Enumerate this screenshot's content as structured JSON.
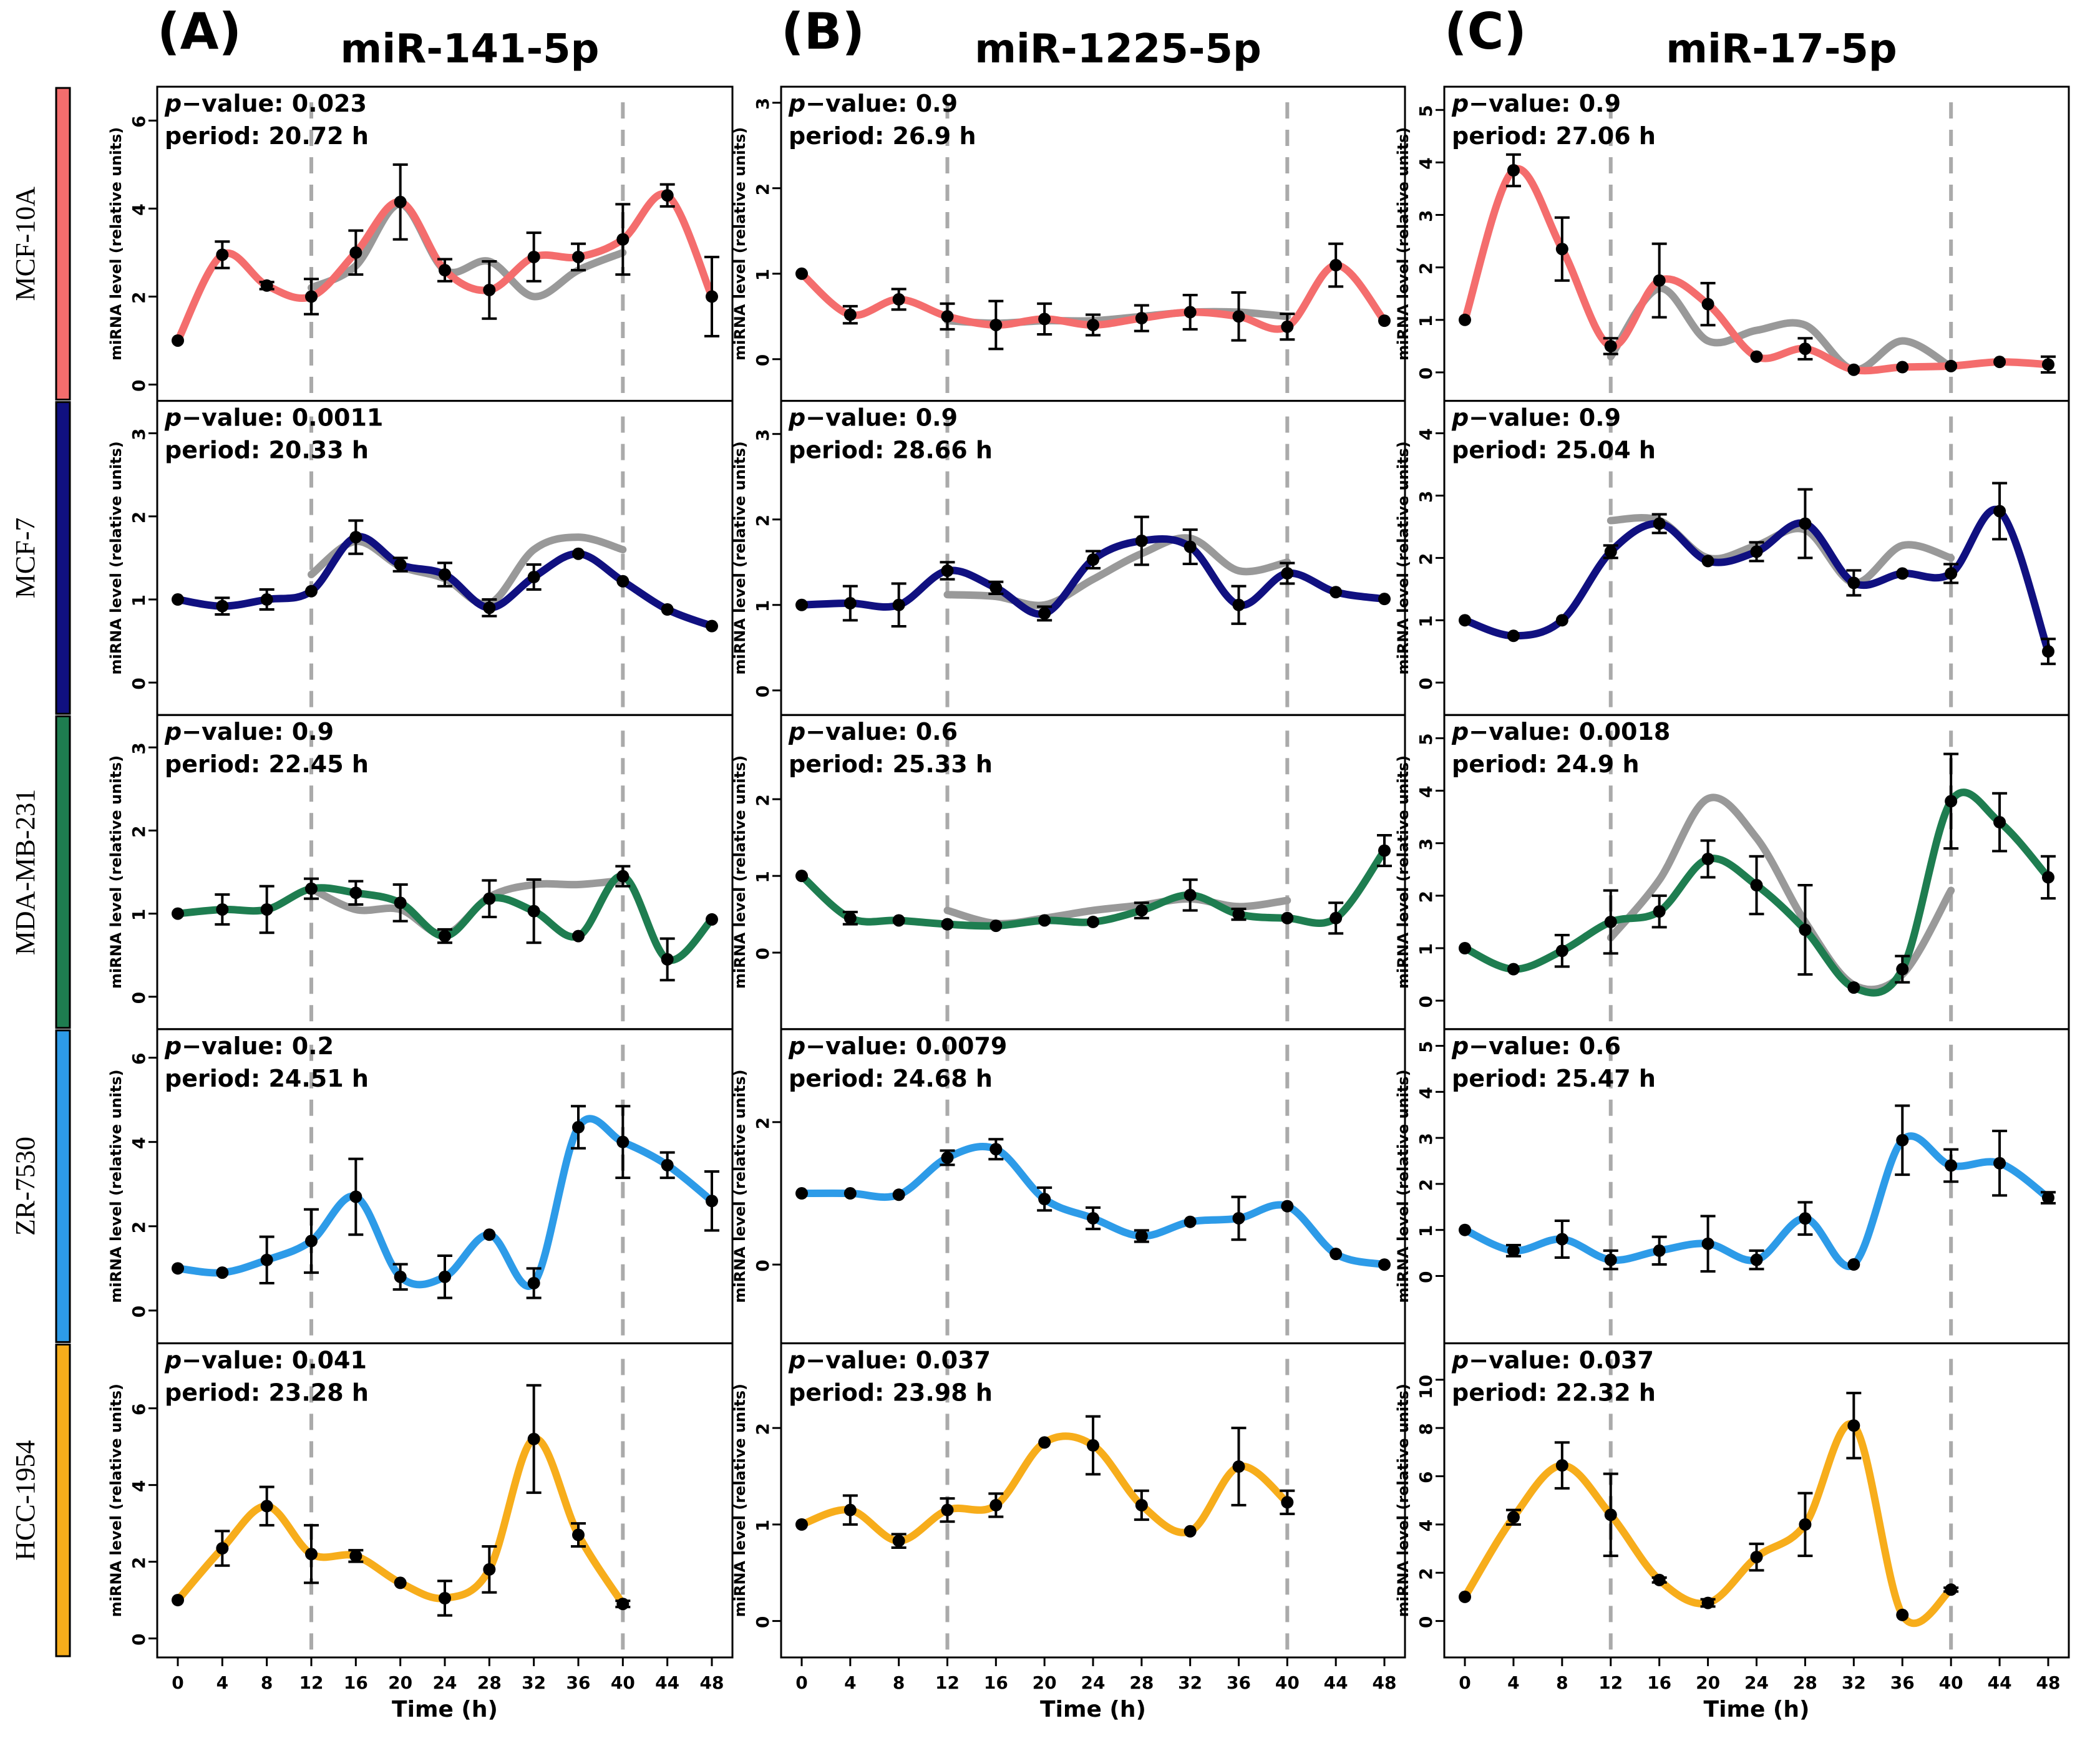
{
  "colors": {
    "fitted_line": "#999999",
    "cycle_marker": "#aaaaaa",
    "points": "#000000"
  },
  "chart_data": {
    "type": "line",
    "x_label": "Time (h)",
    "y_label": "miRNA level (relative units)",
    "x": [
      0,
      4,
      8,
      12,
      16,
      20,
      24,
      28,
      32,
      36,
      40,
      44,
      48
    ],
    "x_ticks": [
      "0",
      "4",
      "8",
      "12",
      "16",
      "20",
      "24",
      "28",
      "32",
      "36",
      "40",
      "44",
      "48"
    ],
    "xlim": [
      -1.5,
      49.5
    ],
    "reference_lines_x": [
      12,
      40
    ],
    "pvalue_prefix": "p",
    "pvalue_suffix": "−value: ",
    "period_prefix": "period: ",
    "period_suffix": " h",
    "columns": [
      {
        "letter": "(A)",
        "title": "miR-141-5p"
      },
      {
        "letter": "(B)",
        "title": "miR-1225-5p"
      },
      {
        "letter": "(C)",
        "title": "miR-17-5p"
      }
    ],
    "rows": [
      {
        "label": "MCF-10A",
        "color": "#f46d6d"
      },
      {
        "label": "MCF-7",
        "color": "#101080"
      },
      {
        "label": "MDA-MB-231",
        "color": "#1e7d50"
      },
      {
        "label": "ZR-7530",
        "color": "#2d9be8"
      },
      {
        "label": "HCC-1954",
        "color": "#f7ad1b"
      }
    ],
    "panels": [
      {
        "row": 0,
        "col": 0,
        "pvalue": "0.023",
        "period": "20.72",
        "ylim": [
          -0.2,
          6.6
        ],
        "yticks": [
          "0",
          "2",
          "4",
          "6"
        ],
        "values": [
          1.0,
          2.95,
          2.25,
          2.0,
          3.0,
          4.15,
          2.6,
          2.15,
          2.9,
          2.9,
          3.3,
          4.3,
          2.0
        ],
        "errors": [
          0.05,
          0.3,
          0.08,
          0.4,
          0.5,
          0.85,
          0.25,
          0.65,
          0.55,
          0.3,
          0.8,
          0.25,
          0.9
        ],
        "fit_x": [
          12,
          16,
          20,
          24,
          28,
          32,
          36,
          40
        ],
        "fit_y": [
          2.2,
          2.7,
          4.1,
          2.6,
          2.8,
          2.0,
          2.6,
          3.0
        ]
      },
      {
        "row": 0,
        "col": 1,
        "pvalue": "0.9",
        "period": "26.9",
        "ylim": [
          -0.4,
          3.1
        ],
        "yticks": [
          "0",
          "1",
          "2",
          "3"
        ],
        "values": [
          1.0,
          0.52,
          0.7,
          0.5,
          0.4,
          0.47,
          0.4,
          0.48,
          0.55,
          0.5,
          0.38,
          1.1,
          0.45
        ],
        "errors": [
          0.03,
          0.1,
          0.12,
          0.15,
          0.28,
          0.18,
          0.12,
          0.15,
          0.2,
          0.28,
          0.15,
          0.25,
          0.05
        ],
        "fit_x": [
          12,
          16,
          20,
          24,
          28,
          32,
          36,
          40
        ],
        "fit_y": [
          0.45,
          0.42,
          0.45,
          0.45,
          0.5,
          0.55,
          0.55,
          0.5
        ]
      },
      {
        "row": 0,
        "col": 2,
        "pvalue": "0.9",
        "period": "27.06",
        "ylim": [
          -0.4,
          5.3
        ],
        "yticks": [
          "0",
          "1",
          "2",
          "3",
          "4",
          "5"
        ],
        "values": [
          1.0,
          3.85,
          2.35,
          0.5,
          1.75,
          1.3,
          0.3,
          0.45,
          0.05,
          0.1,
          0.12,
          0.2,
          0.15
        ],
        "errors": [
          0.05,
          0.3,
          0.6,
          0.15,
          0.7,
          0.4,
          0.05,
          0.2,
          0.05,
          0.05,
          0.05,
          0.05,
          0.15
        ],
        "fit_x": [
          12,
          16,
          20,
          24,
          28,
          32,
          36,
          40
        ],
        "fit_y": [
          0.3,
          1.6,
          0.6,
          0.8,
          0.9,
          0.05,
          0.6,
          0.1
        ]
      },
      {
        "row": 1,
        "col": 0,
        "pvalue": "0.0011",
        "period": "20.33",
        "ylim": [
          -0.3,
          3.3
        ],
        "yticks": [
          "0",
          "1",
          "2",
          "3"
        ],
        "values": [
          1.0,
          0.92,
          1.0,
          1.1,
          1.75,
          1.42,
          1.3,
          0.9,
          1.27,
          1.55,
          1.22,
          0.88,
          0.68
        ],
        "errors": [
          0.03,
          0.1,
          0.12,
          0.06,
          0.2,
          0.08,
          0.14,
          0.1,
          0.15,
          0.06,
          0.04,
          0.06,
          0.03
        ],
        "fit_x": [
          12,
          16,
          20,
          24,
          28,
          32,
          36,
          40
        ],
        "fit_y": [
          1.3,
          1.7,
          1.4,
          1.25,
          0.95,
          1.6,
          1.75,
          1.6
        ]
      },
      {
        "row": 1,
        "col": 1,
        "pvalue": "0.9",
        "period": "28.66",
        "ylim": [
          -0.2,
          3.3
        ],
        "yticks": [
          "0",
          "1",
          "2",
          "3"
        ],
        "values": [
          1.0,
          1.02,
          1.0,
          1.4,
          1.2,
          0.9,
          1.53,
          1.75,
          1.68,
          1.0,
          1.37,
          1.15,
          1.07
        ],
        "errors": [
          0.03,
          0.2,
          0.25,
          0.1,
          0.07,
          0.08,
          0.1,
          0.28,
          0.2,
          0.22,
          0.12,
          0.06,
          0.06
        ],
        "fit_x": [
          12,
          16,
          20,
          24,
          28,
          32,
          36,
          40
        ],
        "fit_y": [
          1.12,
          1.1,
          1.0,
          1.3,
          1.6,
          1.78,
          1.4,
          1.5
        ]
      },
      {
        "row": 1,
        "col": 2,
        "pvalue": "0.9",
        "period": "25.04",
        "ylim": [
          -0.4,
          4.4
        ],
        "yticks": [
          "0",
          "1",
          "2",
          "3",
          "4"
        ],
        "values": [
          1.0,
          0.75,
          1.0,
          2.1,
          2.55,
          1.95,
          2.1,
          2.55,
          1.6,
          1.75,
          1.75,
          2.75,
          0.5
        ],
        "errors": [
          0.03,
          0.05,
          0.05,
          0.1,
          0.15,
          0.04,
          0.15,
          0.55,
          0.2,
          0.04,
          0.15,
          0.45,
          0.2
        ],
        "fit_x": [
          12,
          16,
          20,
          24,
          28,
          32,
          36,
          40
        ],
        "fit_y": [
          2.6,
          2.6,
          2.0,
          2.2,
          2.45,
          1.6,
          2.2,
          2.0
        ]
      },
      {
        "row": 2,
        "col": 0,
        "pvalue": "0.9",
        "period": "22.45",
        "ylim": [
          -0.3,
          3.3
        ],
        "yticks": [
          "0",
          "1",
          "2",
          "3"
        ],
        "values": [
          1.0,
          1.05,
          1.05,
          1.3,
          1.25,
          1.13,
          0.73,
          1.18,
          1.03,
          0.73,
          1.45,
          0.45,
          0.93
        ],
        "errors": [
          0.03,
          0.18,
          0.28,
          0.12,
          0.14,
          0.22,
          0.08,
          0.22,
          0.38,
          0.06,
          0.12,
          0.25,
          0.03
        ],
        "fit_x": [
          12,
          16,
          20,
          24,
          28,
          32,
          36,
          40
        ],
        "fit_y": [
          1.3,
          1.05,
          1.05,
          0.75,
          1.2,
          1.35,
          1.35,
          1.4
        ]
      },
      {
        "row": 2,
        "col": 1,
        "pvalue": "0.6",
        "period": "25.33",
        "ylim": [
          -0.9,
          3.0
        ],
        "yticks": [
          "0",
          "1",
          "2"
        ],
        "values": [
          1.0,
          0.45,
          0.42,
          0.37,
          0.35,
          0.42,
          0.4,
          0.55,
          0.75,
          0.5,
          0.45,
          0.45,
          1.33
        ],
        "errors": [
          0.03,
          0.08,
          0.06,
          0.04,
          0.06,
          0.04,
          0.04,
          0.1,
          0.2,
          0.07,
          0.03,
          0.2,
          0.2
        ],
        "fit_x": [
          12,
          16,
          20,
          24,
          28,
          32,
          36,
          40
        ],
        "fit_y": [
          0.55,
          0.38,
          0.45,
          0.55,
          0.62,
          0.7,
          0.6,
          0.68
        ]
      },
      {
        "row": 2,
        "col": 2,
        "pvalue": "0.0018",
        "period": "24.9",
        "ylim": [
          -0.4,
          5.3
        ],
        "yticks": [
          "0",
          "1",
          "2",
          "3",
          "4",
          "5"
        ],
        "values": [
          1.0,
          0.6,
          0.95,
          1.5,
          1.7,
          2.7,
          2.2,
          1.35,
          0.25,
          0.6,
          3.8,
          3.4,
          2.35
        ],
        "errors": [
          0.03,
          0.04,
          0.3,
          0.6,
          0.3,
          0.35,
          0.55,
          0.85,
          0.04,
          0.25,
          0.9,
          0.55,
          0.4
        ],
        "fit_x": [
          12,
          16,
          20,
          24,
          28,
          32,
          36,
          40
        ],
        "fit_y": [
          1.2,
          2.3,
          3.85,
          3.1,
          1.5,
          0.3,
          0.5,
          2.1
        ]
      },
      {
        "row": 3,
        "col": 0,
        "pvalue": "0.2",
        "period": "24.51",
        "ylim": [
          -0.6,
          6.5
        ],
        "yticks": [
          "0",
          "2",
          "4",
          "6"
        ],
        "values": [
          1.0,
          0.9,
          1.2,
          1.65,
          2.7,
          0.8,
          0.8,
          1.8,
          0.65,
          4.35,
          4.0,
          3.45,
          2.6
        ],
        "errors": [
          0.03,
          0.05,
          0.55,
          0.75,
          0.9,
          0.3,
          0.5,
          0.05,
          0.35,
          0.5,
          0.85,
          0.3,
          0.7
        ],
        "fit_x": [],
        "fit_y": []
      },
      {
        "row": 3,
        "col": 1,
        "pvalue": "0.0079",
        "period": "24.68",
        "ylim": [
          -1.0,
          3.2
        ],
        "yticks": [
          "0",
          "2"
        ],
        "values": [
          1.0,
          1.0,
          0.98,
          1.5,
          1.62,
          0.92,
          0.65,
          0.4,
          0.6,
          0.65,
          0.82,
          0.15,
          0.0
        ],
        "errors": [
          0.03,
          0.04,
          0.03,
          0.1,
          0.14,
          0.16,
          0.15,
          0.08,
          0.04,
          0.3,
          0.05,
          0.05,
          0.02
        ],
        "fit_x": [],
        "fit_y": []
      },
      {
        "row": 3,
        "col": 2,
        "pvalue": "0.6",
        "period": "25.47",
        "ylim": [
          -1.3,
          5.2
        ],
        "yticks": [
          "0",
          "1",
          "2",
          "3",
          "4",
          "5"
        ],
        "values": [
          1.0,
          0.55,
          0.8,
          0.35,
          0.55,
          0.7,
          0.35,
          1.25,
          0.25,
          2.95,
          2.4,
          2.45,
          1.7
        ],
        "errors": [
          0.03,
          0.12,
          0.4,
          0.2,
          0.3,
          0.6,
          0.2,
          0.35,
          0.05,
          0.75,
          0.35,
          0.7,
          0.12
        ],
        "fit_x": [],
        "fit_y": []
      },
      {
        "row": 4,
        "col": 0,
        "pvalue": "0.041",
        "period": "23.28",
        "ylim": [
          -0.3,
          7.5
        ],
        "yticks": [
          "0",
          "2",
          "4",
          "6"
        ],
        "values": [
          1.0,
          2.35,
          3.45,
          2.2,
          2.15,
          1.45,
          1.05,
          1.8,
          5.2,
          2.7,
          0.9,
          null,
          null
        ],
        "errors": [
          0.03,
          0.45,
          0.5,
          0.75,
          0.15,
          0.05,
          0.45,
          0.6,
          1.4,
          0.3,
          0.08,
          null,
          null
        ],
        "fit_x": [],
        "fit_y": []
      },
      {
        "row": 4,
        "col": 1,
        "pvalue": "0.037",
        "period": "23.98",
        "ylim": [
          -0.3,
          2.8
        ],
        "yticks": [
          "0",
          "1",
          "2"
        ],
        "values": [
          1.0,
          1.15,
          0.83,
          1.15,
          1.2,
          1.85,
          1.82,
          1.2,
          0.93,
          1.6,
          1.23,
          null,
          null
        ],
        "errors": [
          0.03,
          0.15,
          0.07,
          0.12,
          0.12,
          0.05,
          0.3,
          0.15,
          0.04,
          0.4,
          0.12,
          null,
          null
        ],
        "fit_x": [],
        "fit_y": []
      },
      {
        "row": 4,
        "col": 2,
        "pvalue": "0.037",
        "period": "22.32",
        "ylim": [
          -1.2,
          11.2
        ],
        "yticks": [
          "0",
          "2",
          "4",
          "6",
          "8",
          "10"
        ],
        "values": [
          1.0,
          4.3,
          6.45,
          4.4,
          1.7,
          0.75,
          2.65,
          4.0,
          8.1,
          0.25,
          1.3,
          null,
          null
        ],
        "errors": [
          0.05,
          0.3,
          0.95,
          1.7,
          0.1,
          0.15,
          0.55,
          1.3,
          1.35,
          0.05,
          0.08,
          null,
          null
        ],
        "fit_x": [],
        "fit_y": []
      }
    ]
  }
}
